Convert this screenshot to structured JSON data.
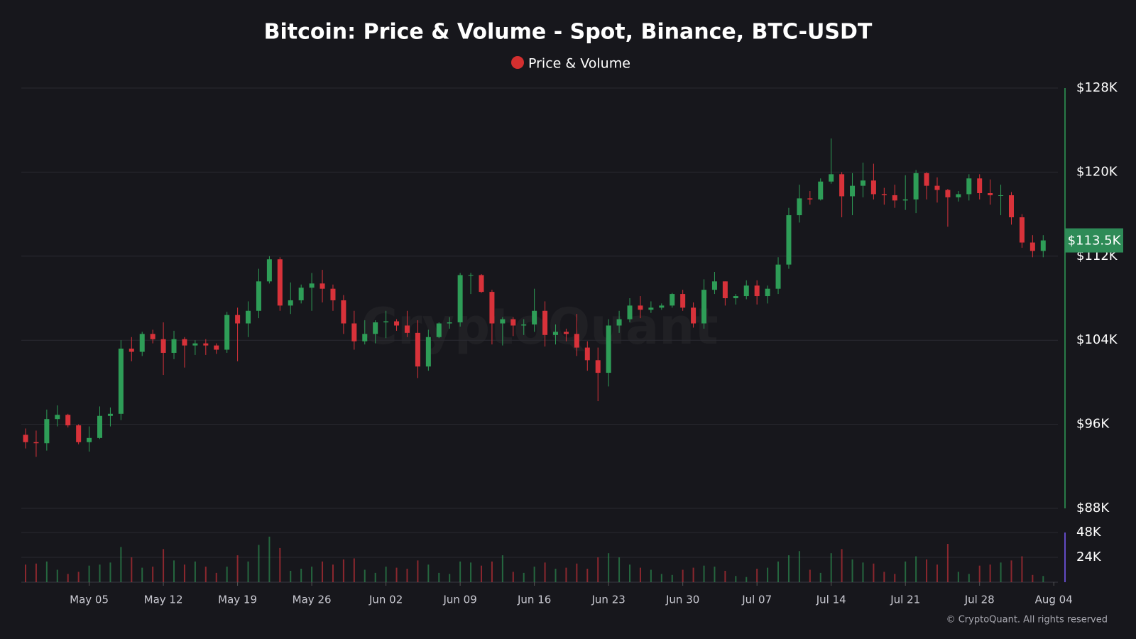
{
  "chart_data": {
    "type": "candlestick",
    "title": "Bitcoin: Price & Volume - Spot, Binance, BTC-USDT",
    "watermark": "CryptoQuant",
    "copyright": "© CryptoQuant. All rights reserved",
    "categories": [
      null,
      null,
      null,
      null,
      null,
      null,
      "May 05",
      null,
      null,
      null,
      null,
      null,
      null,
      "May 12",
      null,
      null,
      null,
      null,
      null,
      null,
      "May 19",
      null,
      null,
      null,
      null,
      null,
      null,
      "May 26",
      null,
      null,
      null,
      null,
      null,
      null,
      "Jun 02",
      null,
      null,
      null,
      null,
      null,
      null,
      "Jun 09",
      null,
      null,
      null,
      null,
      null,
      null,
      "Jun 16",
      null,
      null,
      null,
      null,
      null,
      null,
      "Jun 23",
      null,
      null,
      null,
      null,
      null,
      null,
      "Jun 30",
      null,
      null,
      null,
      null,
      null,
      null,
      "Jul 07",
      null,
      null,
      null,
      null,
      null,
      null,
      "Jul 14",
      null,
      null,
      null,
      null,
      null,
      null,
      "Jul 21",
      null,
      null,
      null,
      null,
      null,
      null,
      "Jul 28",
      null,
      null,
      null,
      null,
      null,
      null,
      "Aug 04"
    ],
    "series": [
      {
        "name": "Price & Volume",
        "color": "#d32f2f",
        "up_color": "#2e9d57",
        "down_color": "#d8323a",
        "open": [
          95000,
          94300,
          94200,
          96500,
          96900,
          95900,
          94300,
          94700,
          96800,
          97000,
          103200,
          102900,
          104600,
          104100,
          102800,
          104100,
          103500,
          103700,
          103500,
          103100,
          106400,
          105600,
          106800,
          109600,
          111700,
          107300,
          107800,
          109000,
          109400,
          108900,
          107800,
          105600,
          103900,
          104600,
          105700,
          105800,
          105400,
          104700,
          101500,
          104300,
          105600,
          105700,
          110200,
          110200,
          108600,
          105600,
          106000,
          105400,
          105500,
          106800,
          104500,
          104800,
          104600,
          103300,
          102100,
          100900,
          105400,
          106000,
          107300,
          106900,
          107100,
          107300,
          108400,
          107100,
          105600,
          108800,
          109600,
          108000,
          108200,
          109200,
          108200,
          108900,
          111200,
          115900,
          117500,
          117400,
          119100,
          119800,
          117700,
          118700,
          119200,
          117900,
          117800,
          117300,
          117400,
          119900,
          118700,
          118300,
          117600,
          117900,
          119400,
          118000,
          117800,
          117800,
          115700,
          113300,
          112500,
          null
        ],
        "high": [
          95600,
          95400,
          97400,
          97800,
          97000,
          96000,
          95800,
          97700,
          97600,
          104000,
          104300,
          104800,
          105000,
          105700,
          104900,
          104300,
          104000,
          104100,
          103700,
          106700,
          107100,
          107700,
          110800,
          112000,
          111900,
          109500,
          109300,
          110400,
          110700,
          109300,
          108300,
          106800,
          105900,
          105900,
          106800,
          106000,
          106800,
          105900,
          105000,
          105700,
          106200,
          110400,
          110400,
          110300,
          108800,
          106200,
          106200,
          106000,
          108900,
          107700,
          105500,
          105100,
          106500,
          103900,
          103300,
          106000,
          106800,
          108000,
          108200,
          107700,
          107500,
          108500,
          108800,
          107600,
          109800,
          110500,
          109600,
          108400,
          109700,
          109700,
          109200,
          111900,
          116600,
          118800,
          118200,
          119400,
          123200,
          120000,
          119900,
          120900,
          120800,
          118500,
          118800,
          119700,
          120200,
          120000,
          119500,
          118400,
          118200,
          119800,
          119800,
          119300,
          118800,
          118100,
          116000,
          114000,
          114000,
          null
        ],
        "low": [
          93700,
          92900,
          93500,
          95800,
          95700,
          94100,
          93400,
          94600,
          95800,
          96400,
          102000,
          102500,
          103700,
          100700,
          102200,
          101400,
          102600,
          102600,
          102700,
          102800,
          102000,
          104300,
          106100,
          109400,
          106800,
          106500,
          107500,
          106800,
          107600,
          106800,
          104600,
          103100,
          103600,
          103700,
          104200,
          104900,
          104300,
          100400,
          101100,
          104200,
          105100,
          105300,
          108400,
          108500,
          103600,
          103500,
          104400,
          104500,
          104800,
          103400,
          103600,
          103900,
          102500,
          101100,
          98200,
          99600,
          104700,
          105700,
          106100,
          106600,
          106900,
          107100,
          106800,
          105200,
          105100,
          108400,
          107300,
          107400,
          107900,
          107400,
          107500,
          108400,
          110800,
          115200,
          116900,
          117300,
          118900,
          115700,
          115900,
          117600,
          117400,
          116900,
          116600,
          116400,
          116100,
          117400,
          117100,
          114800,
          117200,
          117300,
          117400,
          116900,
          115900,
          115000,
          112800,
          111900,
          111900,
          null
        ],
        "close": [
          94300,
          94200,
          96500,
          96900,
          95900,
          94300,
          94700,
          96800,
          97000,
          103200,
          102900,
          104600,
          104100,
          102800,
          104100,
          103500,
          103700,
          103500,
          103100,
          106400,
          105600,
          106800,
          109600,
          111700,
          107300,
          107800,
          109000,
          109400,
          108900,
          107800,
          105600,
          103900,
          104600,
          105700,
          105800,
          105400,
          104700,
          101500,
          104300,
          105600,
          105700,
          110200,
          110200,
          108600,
          105600,
          106000,
          105400,
          105500,
          106800,
          104500,
          104800,
          104600,
          103300,
          102100,
          100900,
          105400,
          106000,
          107300,
          106900,
          107100,
          107300,
          108400,
          107100,
          105600,
          108800,
          109600,
          108000,
          108200,
          109200,
          108200,
          108900,
          111200,
          115900,
          117500,
          117400,
          119100,
          119800,
          117700,
          118700,
          119200,
          117900,
          117800,
          117300,
          117400,
          119900,
          118700,
          118300,
          117600,
          117900,
          119400,
          118000,
          117800,
          117800,
          115700,
          113300,
          112500,
          113500,
          null
        ],
        "volume": [
          17000,
          18000,
          20000,
          12000,
          8000,
          10000,
          16000,
          17000,
          19000,
          34000,
          24000,
          14000,
          15000,
          32000,
          21000,
          17000,
          20000,
          15000,
          9000,
          15000,
          26000,
          20000,
          36000,
          44000,
          33000,
          11000,
          13000,
          15000,
          20000,
          17000,
          22000,
          23000,
          12000,
          9000,
          15000,
          14000,
          13000,
          21000,
          17000,
          9000,
          8000,
          20000,
          19000,
          16000,
          20000,
          26000,
          10000,
          9000,
          15000,
          19000,
          13000,
          14000,
          18000,
          13000,
          24000,
          28000,
          24000,
          17000,
          14000,
          12000,
          8000,
          7000,
          12000,
          14000,
          16000,
          15000,
          11000,
          6000,
          5000,
          13000,
          14000,
          20000,
          26000,
          30000,
          12000,
          9000,
          28000,
          32000,
          22000,
          19000,
          18000,
          10000,
          8000,
          20000,
          25000,
          22000,
          17000,
          37000,
          10000,
          8000,
          16000,
          17000,
          19000,
          21000,
          25000,
          7000,
          6000,
          null
        ]
      }
    ],
    "ylim": [
      88000,
      128000
    ],
    "yticks": [
      {
        "value": 88000,
        "label": "$88K"
      },
      {
        "value": 96000,
        "label": "$96K"
      },
      {
        "value": 104000,
        "label": "$104K"
      },
      {
        "value": 112000,
        "label": "$112K"
      },
      {
        "value": 120000,
        "label": "$120K"
      },
      {
        "value": 128000,
        "label": "$128K"
      }
    ],
    "y2lim": [
      0,
      48000
    ],
    "y2ticks": [
      {
        "value": 24000,
        "label": "24K"
      },
      {
        "value": 48000,
        "label": "48K"
      }
    ],
    "last_price": {
      "value": 113500,
      "label": "$113.5K"
    },
    "grid": true
  }
}
